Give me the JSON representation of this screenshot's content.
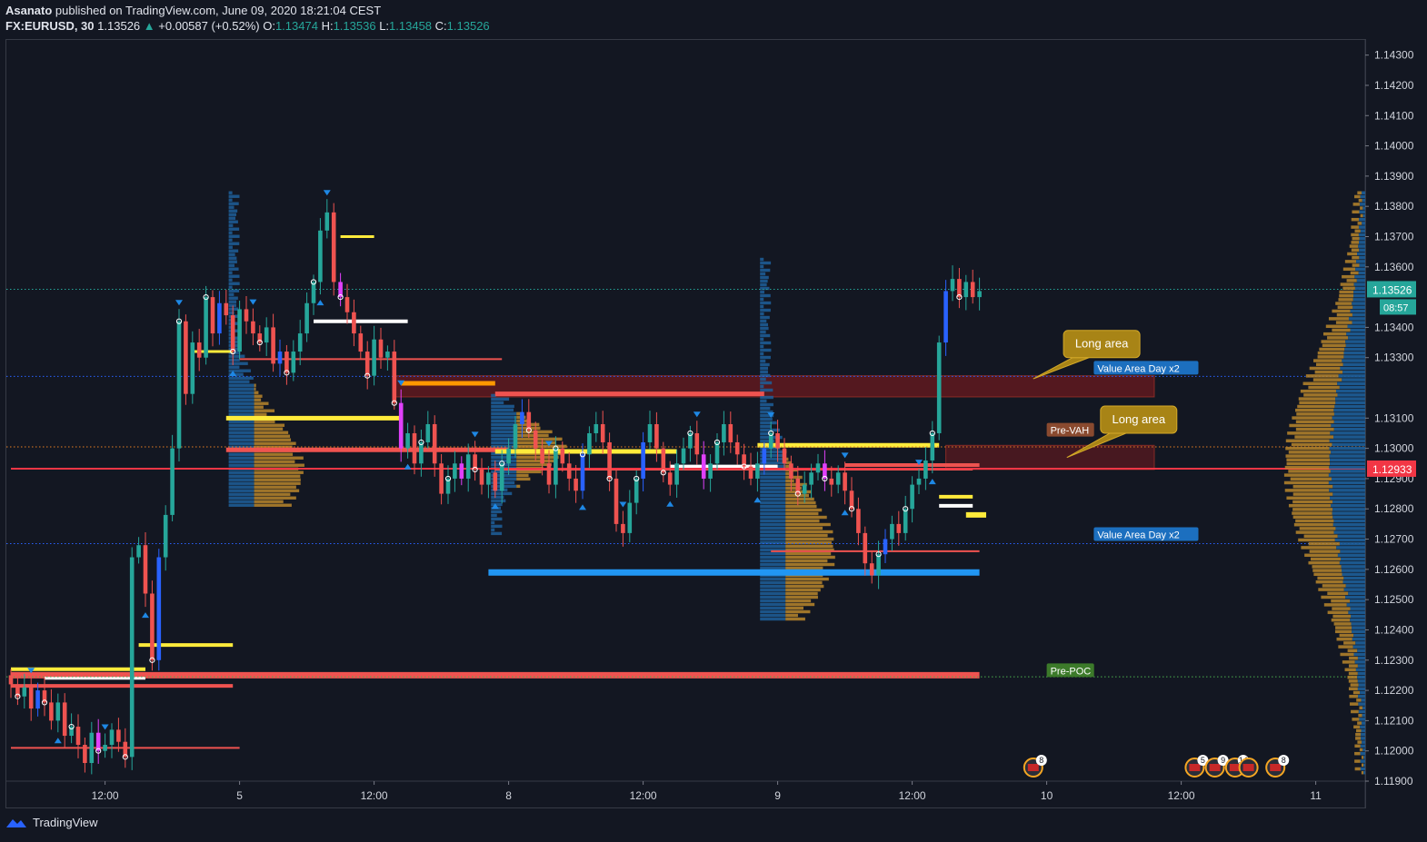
{
  "header": {
    "author": "Asanato",
    "published_text": "published on TradingView.com, June 09, 2020 18:21:04 CEST",
    "symbol": "FX:EURUSD, 30",
    "last": "1.13526",
    "change": "+0.00587 (+0.52%)",
    "o_label": "O:",
    "o": "1.13474",
    "h_label": "H:",
    "h": "1.13536",
    "l_label": "L:",
    "l": "1.13458",
    "c_label": "C:",
    "c": "1.13526"
  },
  "chart_data": {
    "type": "candlestick",
    "symbol": "FX:EURUSD",
    "interval": "30",
    "ylim": [
      1.119,
      1.1435
    ],
    "y_ticks": [
      "1.14300",
      "1.14200",
      "1.14100",
      "1.14000",
      "1.13900",
      "1.13800",
      "1.13700",
      "1.13600",
      "1.13400",
      "1.13300",
      "1.13100",
      "1.13000",
      "1.12900",
      "1.12800",
      "1.12700",
      "1.12600",
      "1.12500",
      "1.12400",
      "1.12300",
      "1.12200",
      "1.12100",
      "1.12000",
      "1.11900"
    ],
    "x_ticks": [
      {
        "label": "12:00",
        "i": 14
      },
      {
        "label": "5",
        "i": 34
      },
      {
        "label": "12:00",
        "i": 54
      },
      {
        "label": "8",
        "i": 74
      },
      {
        "label": "12:00",
        "i": 94
      },
      {
        "label": "9",
        "i": 114
      },
      {
        "label": "12:00",
        "i": 134
      },
      {
        "label": "10",
        "i": 154
      },
      {
        "label": "12:00",
        "i": 174
      },
      {
        "label": "11",
        "i": 194
      }
    ],
    "price_labels": [
      {
        "price": 1.13526,
        "text": "1.13526",
        "countdown": "08:57",
        "color": "#26a69a"
      },
      {
        "price": 1.12933,
        "text": "1.12933",
        "color": "#f23645"
      }
    ],
    "annotations": [
      {
        "text": "Long area",
        "i": 156.5,
        "price": 1.1339,
        "target_i": 152,
        "target_price": 1.1323
      },
      {
        "text": "Long area",
        "i": 162,
        "price": 1.1314,
        "target_i": 157,
        "target_price": 1.1297
      }
    ],
    "zones": [
      {
        "from_i": 57,
        "to_i": 170,
        "top": 1.1324,
        "bottom": 1.1317,
        "color": "#6b1a1f"
      },
      {
        "from_i": 139,
        "to_i": 170,
        "top": 1.1301,
        "bottom": 1.1293,
        "color": "#5a1a20"
      }
    ],
    "level_tags": [
      {
        "text": "Value Area Day x2",
        "price": 1.13265,
        "i": 161,
        "bg": "#1c6fbf"
      },
      {
        "text": "Pre-VAH",
        "price": 1.1306,
        "i": 154,
        "bg": "#8a4a2f"
      },
      {
        "text": "Value Area Day x2",
        "price": 1.12715,
        "i": 161,
        "bg": "#1c6fbf"
      },
      {
        "text": "Pre-POC",
        "price": 1.12265,
        "i": 154,
        "bg": "#3c7a2a"
      }
    ],
    "dotted_levels": [
      {
        "price": 1.13526,
        "color": "#26a69a"
      },
      {
        "price": 1.13238,
        "color": "#2962ff"
      },
      {
        "price": 1.13005,
        "color": "#e67e22"
      },
      {
        "price": 1.12685,
        "color": "#2962ff"
      },
      {
        "price": 1.12245,
        "color": "#4caf50"
      }
    ],
    "solid_levels": [
      {
        "price": 1.12933,
        "from_i": 0,
        "to_i": 200,
        "color": "#f23645",
        "w": 2
      }
    ],
    "session_lines": [
      {
        "price": 1.1225,
        "from_i": 0,
        "to_i": 144,
        "color": "#ef5350",
        "w": 7
      },
      {
        "price": 1.1259,
        "from_i": 71,
        "to_i": 144,
        "color": "#2196f3",
        "w": 7
      },
      {
        "price": 1.1318,
        "from_i": 72,
        "to_i": 112,
        "color": "#ef5350",
        "w": 5
      },
      {
        "price": 1.13215,
        "from_i": 58,
        "to_i": 72,
        "color": "#ff9800",
        "w": 5
      },
      {
        "price": 1.131,
        "from_i": 32,
        "to_i": 58,
        "color": "#ffeb3b",
        "w": 5
      },
      {
        "price": 1.12995,
        "from_i": 32,
        "to_i": 74,
        "color": "#ef5350",
        "w": 5
      },
      {
        "price": 1.1299,
        "from_i": 72,
        "to_i": 99,
        "color": "#ffeb3b",
        "w": 5
      },
      {
        "price": 1.1301,
        "from_i": 111,
        "to_i": 138,
        "color": "#ffeb3b",
        "w": 5
      },
      {
        "price": 1.12945,
        "from_i": 124,
        "to_i": 144,
        "color": "#ef5350",
        "w": 4
      },
      {
        "price": 1.1293,
        "from_i": 72,
        "to_i": 143,
        "color": "#ef5350",
        "w": 2
      },
      {
        "price": 1.1294,
        "from_i": 98,
        "to_i": 114,
        "color": "#ffffff",
        "w": 4
      },
      {
        "price": 1.1342,
        "from_i": 45,
        "to_i": 59,
        "color": "#ffffff",
        "w": 4
      },
      {
        "price": 1.1235,
        "from_i": 19,
        "to_i": 33,
        "color": "#ffeb3b",
        "w": 4
      },
      {
        "price": 1.1227,
        "from_i": 0,
        "to_i": 20,
        "color": "#ffeb3b",
        "w": 4
      },
      {
        "price": 1.12215,
        "from_i": 0,
        "to_i": 33,
        "color": "#ef5350",
        "w": 4
      },
      {
        "price": 1.1224,
        "from_i": 5,
        "to_i": 20,
        "color": "#ffffff",
        "w": 3
      },
      {
        "price": 1.13295,
        "from_i": 34,
        "to_i": 73,
        "color": "#ef5350",
        "w": 2
      },
      {
        "price": 1.1266,
        "from_i": 113,
        "to_i": 144,
        "color": "#ef5350",
        "w": 2
      },
      {
        "price": 1.1201,
        "from_i": 0,
        "to_i": 34,
        "color": "#ef5350",
        "w": 2
      },
      {
        "price": 1.1284,
        "from_i": 138,
        "to_i": 143,
        "color": "#ffeb3b",
        "w": 4
      },
      {
        "price": 1.1281,
        "from_i": 138,
        "to_i": 143,
        "color": "#ffffff",
        "w": 4
      },
      {
        "price": 1.1278,
        "from_i": 142,
        "to_i": 145,
        "color": "#ffeb3b",
        "w": 6
      },
      {
        "price": 1.137,
        "from_i": 49,
        "to_i": 54,
        "color": "#ffeb3b",
        "w": 3
      },
      {
        "price": 1.1332,
        "from_i": 27,
        "to_i": 33,
        "color": "#ffeb3b",
        "w": 3
      }
    ],
    "profile_anchors": [
      {
        "i": 34,
        "top": 1.1385,
        "bottom": 1.128,
        "poc": 1.1293
      },
      {
        "i": 73,
        "top": 1.1318,
        "bottom": 1.127,
        "poc": 1.13
      },
      {
        "i": 113,
        "top": 1.1363,
        "bottom": 1.1242,
        "poc": 1.1266
      }
    ],
    "event_badges": [
      {
        "i": 152,
        "num": "8"
      },
      {
        "i": 176,
        "num": "5"
      },
      {
        "i": 179,
        "num": "9"
      },
      {
        "i": 182,
        "num": "14"
      },
      {
        "i": 184,
        "num": ""
      },
      {
        "i": 188,
        "num": "8"
      }
    ],
    "closes": [
      1.1222,
      1.1218,
      1.1221,
      1.1214,
      1.122,
      1.1216,
      1.121,
      1.1216,
      1.1205,
      1.1208,
      1.1202,
      1.1196,
      1.1206,
      1.12,
      1.1202,
      1.1207,
      1.1203,
      1.1198,
      1.1264,
      1.1268,
      1.1252,
      1.123,
      1.1264,
      1.1278,
      1.13,
      1.1342,
      1.1318,
      1.1335,
      1.133,
      1.135,
      1.1338,
      1.1348,
      1.1344,
      1.1332,
      1.1346,
      1.1342,
      1.1338,
      1.1335,
      1.134,
      1.1328,
      1.1332,
      1.1325,
      1.1332,
      1.1338,
      1.1348,
      1.1355,
      1.1372,
      1.1378,
      1.1355,
      1.135,
      1.1345,
      1.1338,
      1.1332,
      1.1324,
      1.1336,
      1.133,
      1.1332,
      1.1315,
      1.13,
      1.1305,
      1.1295,
      1.1302,
      1.1308,
      1.1295,
      1.1285,
      1.129,
      1.1295,
      1.129,
      1.1298,
      1.1293,
      1.1288,
      1.1292,
      1.1286,
      1.1295,
      1.13,
      1.1308,
      1.1312,
      1.1306,
      1.13,
      1.1295,
      1.1288,
      1.13,
      1.1295,
      1.129,
      1.1286,
      1.1298,
      1.1305,
      1.1308,
      1.1302,
      1.129,
      1.1275,
      1.1272,
      1.1282,
      1.129,
      1.1302,
      1.1308,
      1.13,
      1.1292,
      1.1288,
      1.1295,
      1.13,
      1.1305,
      1.1298,
      1.129,
      1.1295,
      1.1302,
      1.1308,
      1.1302,
      1.1298,
      1.1294,
      1.129,
      1.1295,
      1.13,
      1.1305,
      1.13,
      1.1295,
      1.129,
      1.1285,
      1.1288,
      1.1292,
      1.1295,
      1.129,
      1.1288,
      1.1292,
      1.1286,
      1.128,
      1.1272,
      1.1262,
      1.1258,
      1.1265,
      1.127,
      1.1275,
      1.1272,
      1.128,
      1.1288,
      1.129,
      1.1296,
      1.1305,
      1.1335,
      1.1352,
      1.1356,
      1.135,
      1.1355,
      1.135,
      1.1352
    ],
    "colors": {
      "up": "#26a69a",
      "down": "#ef5350",
      "up_alt": "#2962ff",
      "down_alt": "#e040fb"
    }
  },
  "footer": {
    "brand": "TradingView"
  }
}
